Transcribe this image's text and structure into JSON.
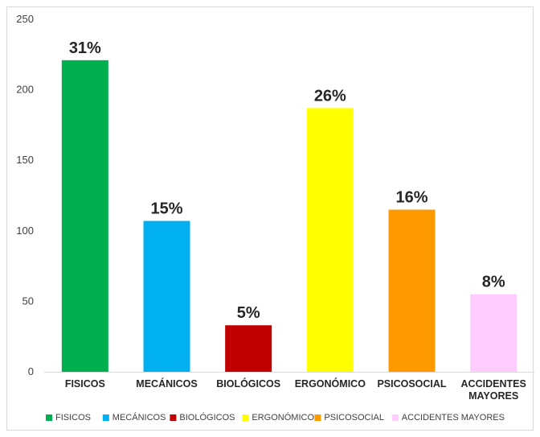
{
  "chart_data": {
    "type": "bar",
    "categories": [
      "FISICOS",
      "MECÁNICOS",
      "BIOLÓGICOS",
      "ERGONÓMICO",
      "PSICOSOCIAL",
      "ACCIDENTES MAYORES"
    ],
    "category_tick_labels": [
      [
        "FISICOS"
      ],
      [
        "MECÁNICOS"
      ],
      [
        "BIOLÓGICOS"
      ],
      [
        "ERGONÓMICO"
      ],
      [
        "PSICOSOCIAL"
      ],
      [
        "ACCIDENTES",
        "MAYORES"
      ]
    ],
    "values": [
      221,
      107,
      33,
      187,
      115,
      55
    ],
    "data_labels": [
      "31%",
      "15%",
      "5%",
      "26%",
      "16%",
      "8%"
    ],
    "colors": [
      "#00b050",
      "#00b0f0",
      "#c00000",
      "#ffff00",
      "#ff9900",
      "#ffccff"
    ],
    "ylim": [
      0,
      250
    ],
    "yticks": [
      0,
      50,
      100,
      150,
      200,
      250
    ],
    "ytick_labels": [
      "0",
      "50",
      "100",
      "150",
      "200",
      "250"
    ],
    "legend": {
      "position": "bottom",
      "entries": [
        "FISICOS",
        "MECÁNICOS",
        "BIOLÓGICOS",
        "ERGONÓMICO",
        "PSICOSOCIAL",
        "ACCIDENTES MAYORES"
      ]
    },
    "grid": false
  }
}
